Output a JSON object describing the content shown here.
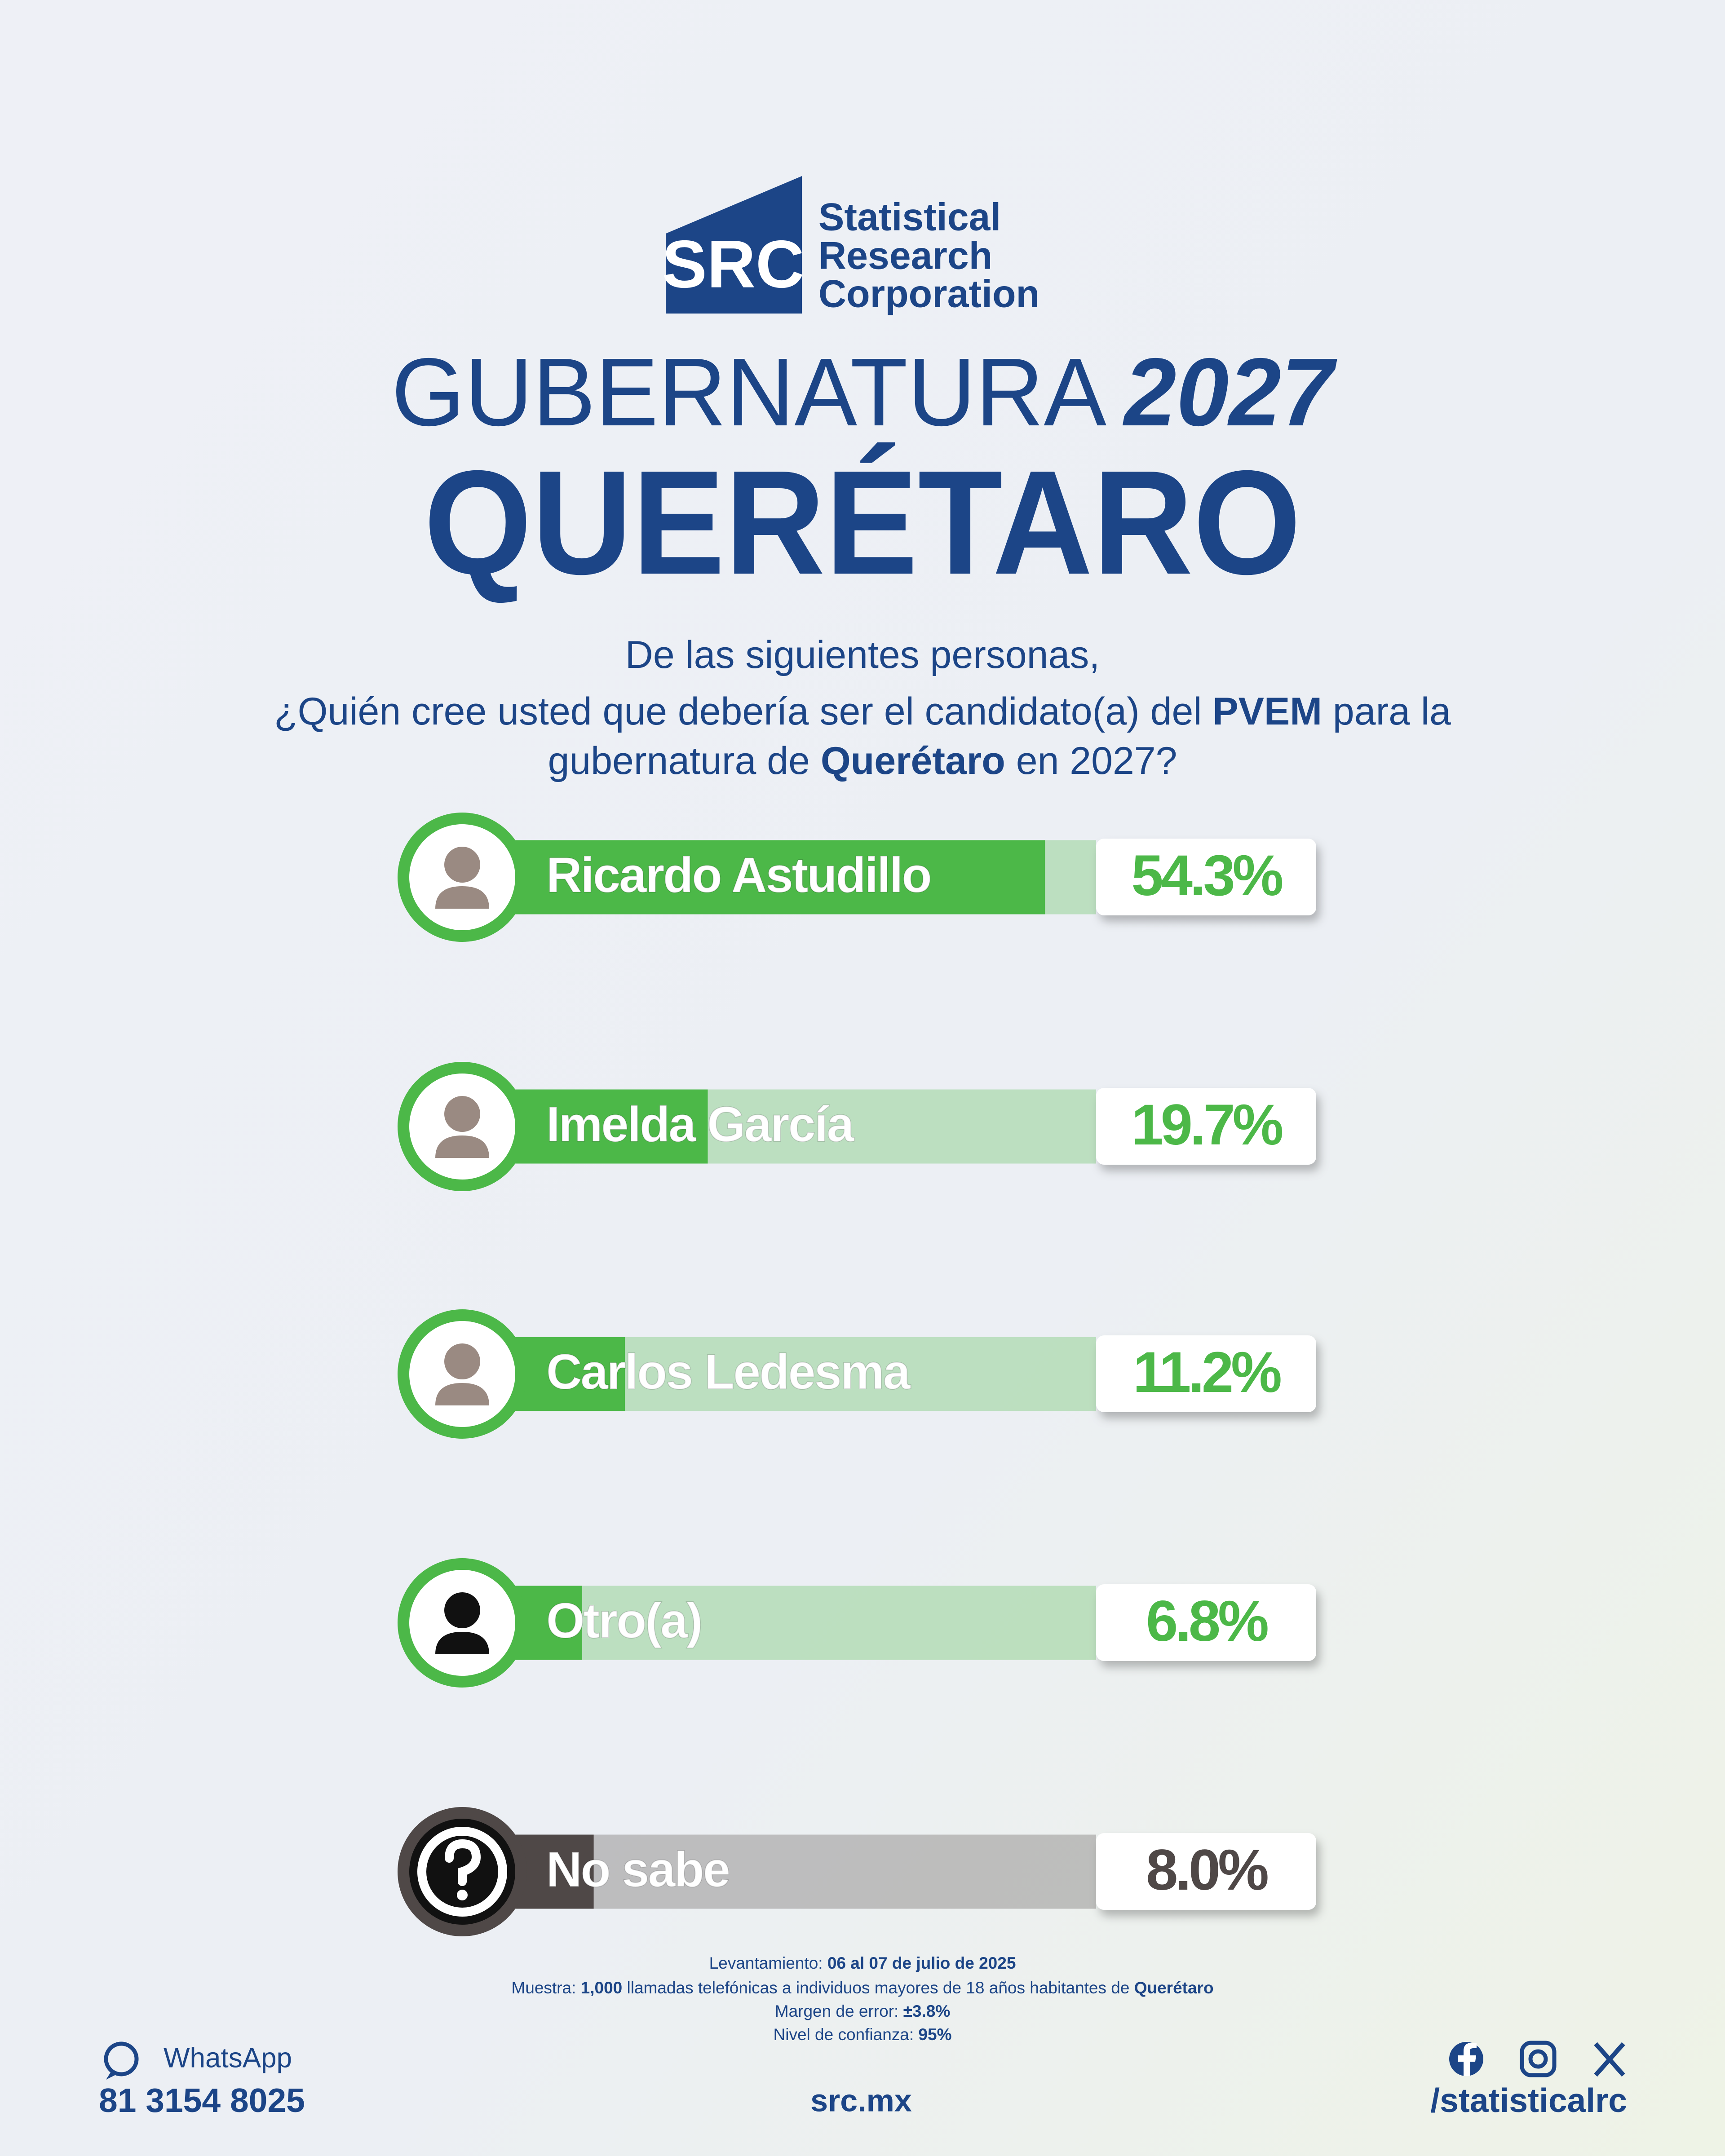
{
  "brand": {
    "logo_mark": "SRC",
    "name_lines": [
      "Statistical",
      "Research",
      "Corporation"
    ]
  },
  "header": {
    "title_light": "GUBERNATURA",
    "title_year": "2027",
    "state": "QUERÉTARO"
  },
  "question": {
    "lines": [
      [
        {
          "text": "De las siguientes personas,",
          "bold": false
        }
      ],
      [
        {
          "text": "¿Quién cree usted que debería ser el candidato(a) del ",
          "bold": false
        },
        {
          "text": "PVEM",
          "bold": true
        },
        {
          "text": " para la",
          "bold": false
        }
      ],
      [
        {
          "text": "gubernatura de ",
          "bold": false
        },
        {
          "text": "Querétaro",
          "bold": true
        },
        {
          "text": " en 2027?",
          "bold": false
        }
      ]
    ]
  },
  "chart_data": {
    "type": "bar",
    "orientation": "horizontal",
    "categories": [
      "Ricardo Astudillo",
      "Imelda García",
      "Carlos Ledesma",
      "Otro(a)",
      "No sabe"
    ],
    "values": [
      54.3,
      19.7,
      11.2,
      6.8,
      8.0
    ],
    "value_labels": [
      "54.3%",
      "19.7%",
      "11.2%",
      "6.8%",
      "8.0%"
    ],
    "colors": [
      "#4cb848",
      "#4cb848",
      "#4cb848",
      "#4cb848",
      "#4f4847"
    ]
  },
  "footer": {
    "notes": [
      [
        {
          "text": "Levantamiento: ",
          "bold": false
        },
        {
          "text": "06 al 07 de julio de 2025",
          "bold": true
        }
      ],
      [
        {
          "text": "Muestra: ",
          "bold": false
        },
        {
          "text": "1,000",
          "bold": true
        },
        {
          "text": " llamadas telefónicas a individuos mayores de 18 años habitantes de ",
          "bold": false
        },
        {
          "text": "Querétaro",
          "bold": true
        }
      ],
      [
        {
          "text": "Margen de error: ",
          "bold": false
        },
        {
          "text": "±3.8%",
          "bold": true
        }
      ],
      [
        {
          "text": "Nivel de confianza: ",
          "bold": false
        },
        {
          "text": "95%",
          "bold": true
        }
      ]
    ],
    "whatsapp_label": "WhatsApp",
    "phone": "81 3154 8025",
    "website": "src.mx",
    "handle": "/statisticalrc"
  }
}
